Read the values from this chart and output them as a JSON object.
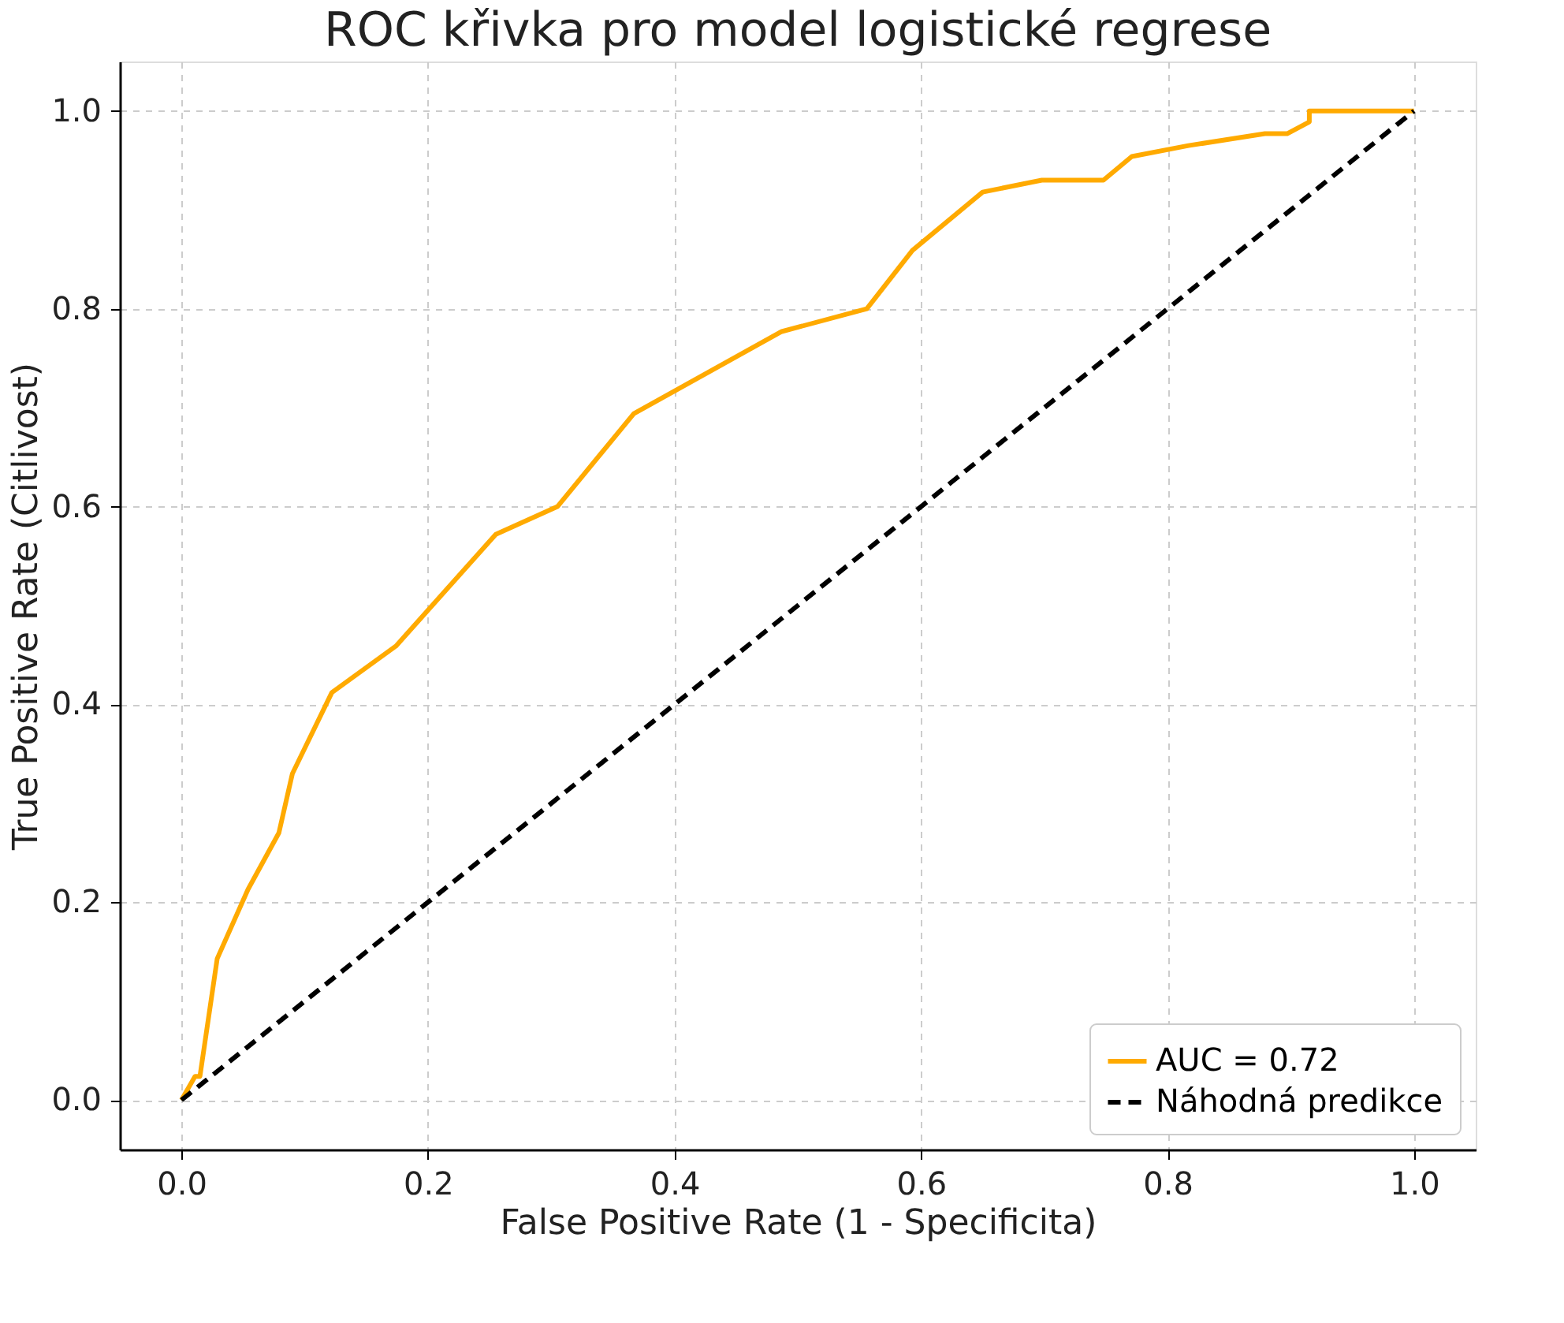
{
  "chart_data": {
    "type": "line",
    "title": "ROC křivka pro model logistické regrese",
    "xlabel": "False Positive Rate (1 - Specificita)",
    "ylabel": "True Positive Rate (Citlivost)",
    "series": [
      {
        "name": "AUC = 0.72",
        "color": "#ffaa00",
        "line_style": "solid",
        "x": [
          0,
          0.011,
          0.015,
          0.029,
          0.054,
          0.079,
          0.09,
          0.122,
          0.174,
          0.255,
          0.305,
          0.367,
          0.487,
          0.556,
          0.593,
          0.65,
          0.698,
          0.748,
          0.771,
          0.817,
          0.879,
          0.897,
          0.915,
          0.915,
          1
        ],
        "values": [
          0,
          0.024,
          0.024,
          0.143,
          0.213,
          0.27,
          0.33,
          0.412,
          0.459,
          0.572,
          0.6,
          0.694,
          0.777,
          0.8,
          0.859,
          0.918,
          0.93,
          0.93,
          0.954,
          0.965,
          0.977,
          0.977,
          0.989,
          1,
          1
        ]
      },
      {
        "name": "Náhodná predikce",
        "color": "#000000",
        "line_style": "dashed",
        "x": [
          0,
          1
        ],
        "values": [
          0,
          1
        ]
      }
    ],
    "xlim": [
      -0.05,
      1.05
    ],
    "ylim": [
      -0.05,
      1.05
    ],
    "xticks": [
      {
        "value": 0,
        "label": "0.0"
      },
      0.2,
      0.4,
      0.6,
      0.8,
      {
        "value": 1,
        "label": "1.0"
      }
    ],
    "yticks": [
      {
        "value": 0,
        "label": "0.0"
      },
      0.2,
      0.4,
      0.6,
      0.8,
      {
        "value": 1,
        "label": "1.0"
      }
    ],
    "grid": true,
    "legend": "bottom right",
    "marker": "none"
  }
}
